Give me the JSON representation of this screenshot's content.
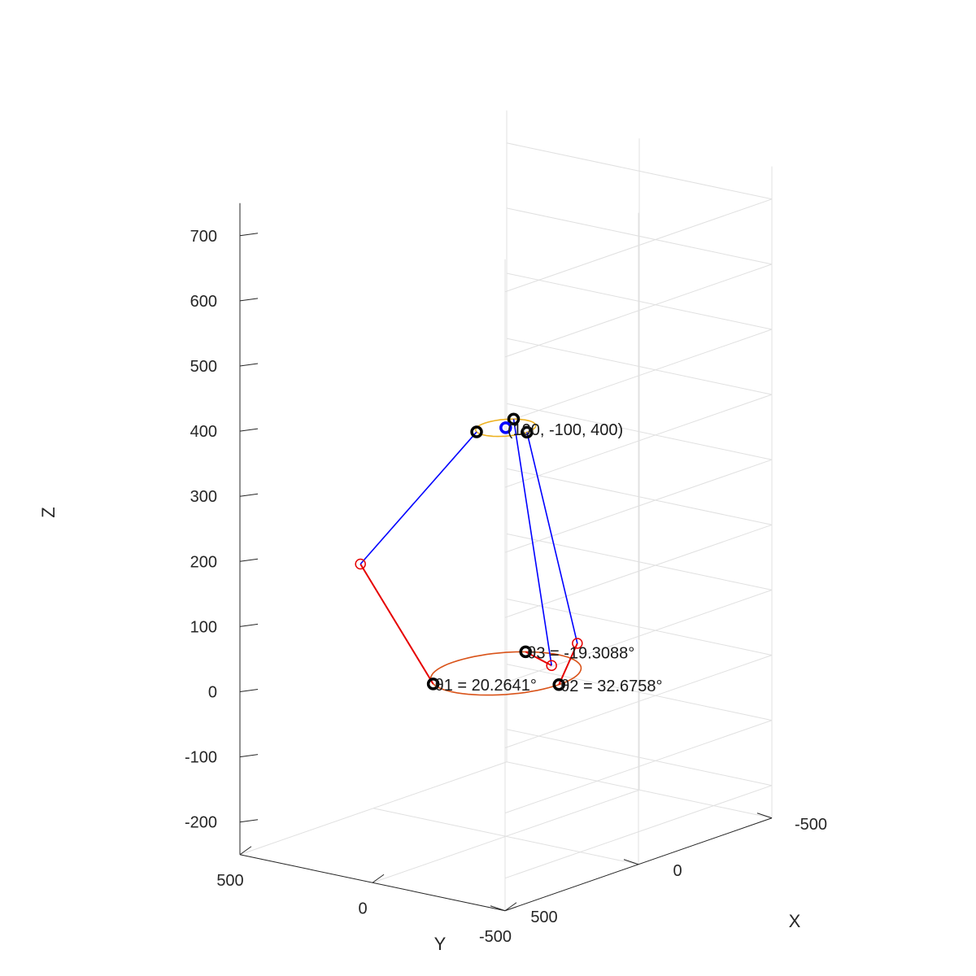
{
  "chart_data": {
    "type": "scatter",
    "subtype": "3d-line-plot",
    "title": "",
    "xlabel": "X",
    "ylabel": "Y",
    "zlabel": "Z",
    "xlim": [
      -500,
      500
    ],
    "ylim": [
      -500,
      500
    ],
    "zlim": [
      -250,
      750
    ],
    "x_ticks": [
      -500,
      0,
      500
    ],
    "y_ticks": [
      -500,
      0,
      500
    ],
    "z_ticks": [
      -200,
      -100,
      0,
      100,
      200,
      300,
      400,
      500,
      600,
      700
    ],
    "grid": true,
    "colors": {
      "upper_arm": "#e60000",
      "lower_arm": "#0000ff",
      "base_circle": "#d95319",
      "platform_circle": "#edb120",
      "end_effector": "#0000ff",
      "joint_marker": "#000000",
      "elbow_marker": "#e60000",
      "grid": "#e0e0e0",
      "axis": "#262626"
    },
    "annotations": {
      "end_effector": "(100, -100, 400)",
      "theta1": "θ1 = 20.2641°",
      "theta2": "θ2 = 32.6758°",
      "theta3": "θ3 = -19.3088°"
    },
    "series": [
      {
        "kind": "base_circle",
        "center": [
          0,
          0,
          0
        ],
        "radius": 200
      },
      {
        "kind": "platform_circle",
        "center": [
          100,
          -100,
          400
        ],
        "radius": 80
      },
      {
        "kind": "chain",
        "shoulder": [
          173.2,
          100,
          0
        ],
        "elbow": [
          346.4,
          200,
          200
        ],
        "wrist": [
          169.3,
          -60,
          400
        ]
      },
      {
        "kind": "chain",
        "shoulder": [
          0,
          -200,
          0
        ],
        "elbow": [
          90,
          -360,
          90
        ],
        "wrist": [
          100,
          -180,
          400
        ]
      },
      {
        "kind": "chain",
        "shoulder": [
          -173.2,
          100,
          0
        ],
        "elbow": [
          -380,
          210,
          -60
        ],
        "wrist": [
          30.7,
          -60,
          400
        ]
      },
      {
        "kind": "end_effector",
        "point": [
          100,
          -100,
          400
        ]
      }
    ]
  }
}
